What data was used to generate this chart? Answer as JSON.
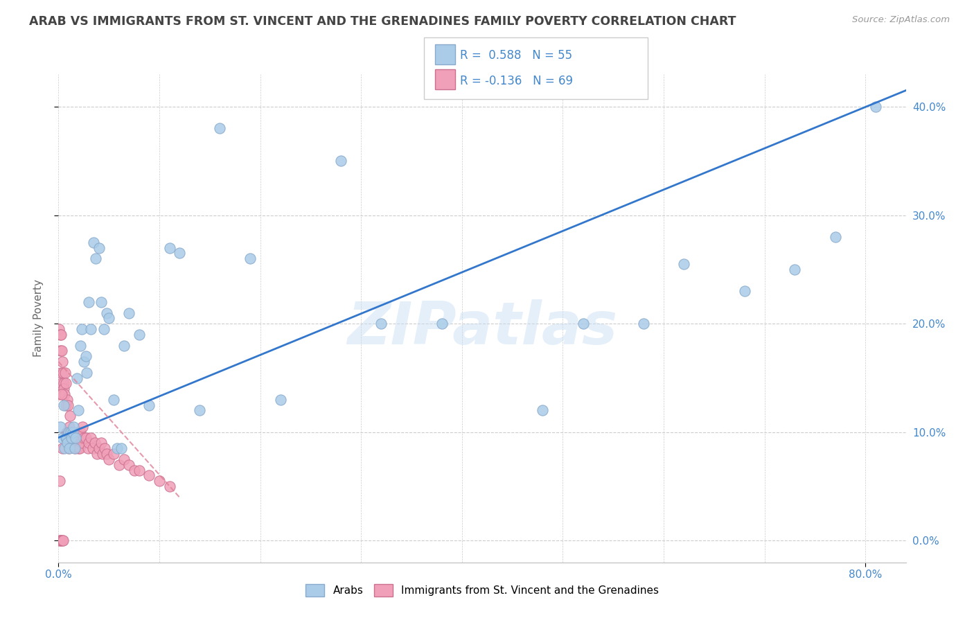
{
  "title": "ARAB VS IMMIGRANTS FROM ST. VINCENT AND THE GRENADINES FAMILY POVERTY CORRELATION CHART",
  "source": "Source: ZipAtlas.com",
  "ylabel": "Family Poverty",
  "watermark": "ZIPatlas",
  "legend_label1": "Arabs",
  "legend_label2": "Immigrants from St. Vincent and the Grenadines",
  "arab_color": "#aacce8",
  "svg_color": "#f0a0b8",
  "line_color": "#3377cc",
  "svg_line_color": "#e08098",
  "arab_edge_color": "#88aacc",
  "svg_edge_color": "#cc7090",
  "background_color": "#ffffff",
  "grid_color": "#cccccc",
  "title_color": "#444444",
  "r_color": "#4488cc",
  "xlim": [
    0.0,
    0.84
  ],
  "ylim": [
    -0.02,
    0.43
  ],
  "ytick_vals": [
    0.0,
    0.1,
    0.2,
    0.3,
    0.4
  ],
  "arab_x": [
    0.002,
    0.004,
    0.005,
    0.006,
    0.007,
    0.008,
    0.009,
    0.01,
    0.011,
    0.012,
    0.013,
    0.014,
    0.015,
    0.016,
    0.017,
    0.018,
    0.02,
    0.022,
    0.023,
    0.025,
    0.027,
    0.028,
    0.03,
    0.032,
    0.035,
    0.037,
    0.04,
    0.042,
    0.045,
    0.048,
    0.05,
    0.055,
    0.058,
    0.062,
    0.065,
    0.07,
    0.08,
    0.09,
    0.11,
    0.12,
    0.14,
    0.16,
    0.19,
    0.22,
    0.28,
    0.32,
    0.38,
    0.48,
    0.52,
    0.58,
    0.62,
    0.68,
    0.73,
    0.77,
    0.81
  ],
  "arab_y": [
    0.105,
    0.095,
    0.125,
    0.085,
    0.095,
    0.095,
    0.09,
    0.1,
    0.085,
    0.1,
    0.095,
    0.1,
    0.105,
    0.085,
    0.095,
    0.15,
    0.12,
    0.18,
    0.195,
    0.165,
    0.17,
    0.155,
    0.22,
    0.195,
    0.275,
    0.26,
    0.27,
    0.22,
    0.195,
    0.21,
    0.205,
    0.13,
    0.085,
    0.085,
    0.18,
    0.21,
    0.19,
    0.125,
    0.27,
    0.265,
    0.12,
    0.38,
    0.26,
    0.13,
    0.35,
    0.2,
    0.2,
    0.12,
    0.2,
    0.2,
    0.255,
    0.23,
    0.25,
    0.28,
    0.4
  ],
  "svg_x": [
    0.0005,
    0.001,
    0.0015,
    0.002,
    0.0025,
    0.003,
    0.0035,
    0.004,
    0.0045,
    0.005,
    0.0055,
    0.006,
    0.0065,
    0.007,
    0.0075,
    0.008,
    0.0085,
    0.009,
    0.0095,
    0.01,
    0.0105,
    0.011,
    0.0115,
    0.012,
    0.0125,
    0.013,
    0.014,
    0.015,
    0.016,
    0.017,
    0.018,
    0.019,
    0.02,
    0.021,
    0.022,
    0.023,
    0.024,
    0.025,
    0.027,
    0.029,
    0.03,
    0.032,
    0.034,
    0.036,
    0.038,
    0.04,
    0.042,
    0.044,
    0.046,
    0.048,
    0.05,
    0.055,
    0.06,
    0.065,
    0.07,
    0.075,
    0.08,
    0.09,
    0.1,
    0.11,
    0.0008,
    0.0012,
    0.0018,
    0.0022,
    0.0028,
    0.0032,
    0.0038,
    0.0042,
    0.0048
  ],
  "svg_y": [
    0.195,
    0.135,
    0.175,
    0.19,
    0.155,
    0.175,
    0.145,
    0.165,
    0.155,
    0.145,
    0.14,
    0.135,
    0.155,
    0.125,
    0.145,
    0.1,
    0.13,
    0.1,
    0.125,
    0.085,
    0.105,
    0.095,
    0.115,
    0.09,
    0.095,
    0.1,
    0.09,
    0.09,
    0.085,
    0.095,
    0.1,
    0.095,
    0.085,
    0.085,
    0.1,
    0.09,
    0.105,
    0.095,
    0.095,
    0.085,
    0.09,
    0.095,
    0.085,
    0.09,
    0.08,
    0.085,
    0.09,
    0.08,
    0.085,
    0.08,
    0.075,
    0.08,
    0.07,
    0.075,
    0.07,
    0.065,
    0.065,
    0.06,
    0.055,
    0.05,
    0.0,
    0.055,
    0.0,
    0.19,
    0.0,
    0.135,
    0.0,
    0.085,
    0.0
  ],
  "line_x": [
    0.0,
    0.84
  ],
  "line_y": [
    0.095,
    0.415
  ],
  "svg_line_x": [
    0.0,
    0.12
  ],
  "svg_line_y": [
    0.165,
    0.04
  ]
}
